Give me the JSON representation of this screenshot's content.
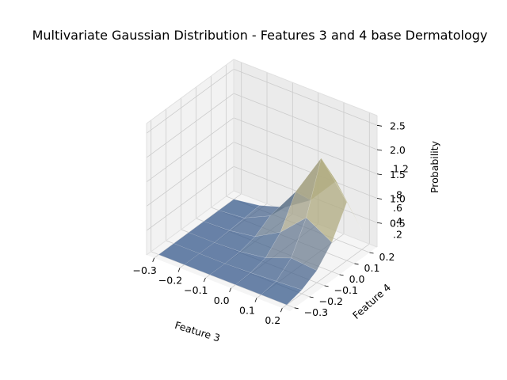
{
  "chart_data": {
    "type": "surface",
    "title": "Multivariate Gaussian Distribution - Features 3 and 4 base Dermatology",
    "xlabel": "Feature 3",
    "ylabel": "Feature 4",
    "zlabel": "Probability",
    "x_ticks": [
      "−0.3",
      "−0.2",
      "−0.1",
      "0.0",
      "0.1",
      "0.2"
    ],
    "y_ticks": [
      "−0.3",
      "−0.2",
      "−0.1",
      "0.0",
      "0.1",
      "0.2"
    ],
    "z_ticks": [
      "0.5",
      "1.0",
      "1.5",
      "2.0",
      "2.5"
    ],
    "z_overlay_ticks": [
      ".2",
      ".4",
      ".6",
      ".8",
      "1.2"
    ],
    "xlim": [
      -0.33,
      0.23
    ],
    "ylim": [
      -0.33,
      0.25
    ],
    "zlim": [
      0.0,
      2.7
    ],
    "grid": true,
    "colormap": "cividis",
    "colormap_low": "#375a8c",
    "colormap_high": "#fde737",
    "x": [
      -0.3,
      -0.2,
      -0.1,
      0.0,
      0.1,
      0.2
    ],
    "y": [
      -0.3,
      -0.2,
      -0.1,
      0.0,
      0.1,
      0.2
    ],
    "z": [
      [
        0.0,
        0.0,
        0.0,
        0.0,
        0.0,
        0.0
      ],
      [
        0.0,
        0.0,
        0.0,
        0.02,
        0.05,
        0.08
      ],
      [
        0.0,
        0.0,
        0.02,
        0.1,
        0.3,
        0.25
      ],
      [
        0.0,
        0.02,
        0.1,
        0.4,
        0.9,
        0.6
      ],
      [
        0.0,
        0.05,
        0.3,
        1.0,
        1.9,
        1.2
      ],
      [
        0.0,
        0.08,
        0.25,
        0.6,
        1.2,
        0.4
      ]
    ]
  }
}
